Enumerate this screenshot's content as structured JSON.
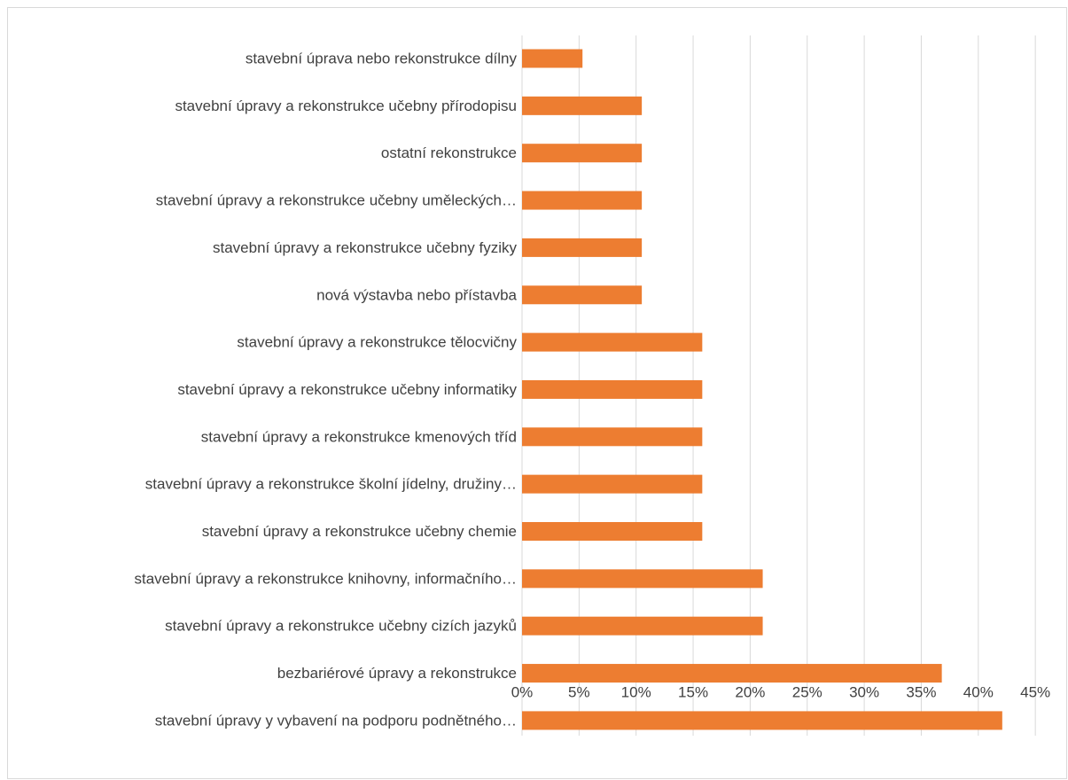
{
  "chart_data": {
    "type": "bar",
    "orientation": "horizontal",
    "title": "",
    "xlabel": "",
    "ylabel": "",
    "xlim": [
      0,
      45
    ],
    "x_ticks": [
      "0%",
      "5%",
      "10%",
      "15%",
      "20%",
      "25%",
      "30%",
      "35%",
      "40%",
      "45%"
    ],
    "grid": true,
    "bar_color": "#ED7D31",
    "categories": [
      "stavební úprava nebo rekonstrukce dílny",
      "stavební úpravy a rekonstrukce učebny přírodopisu",
      "ostatní rekonstrukce",
      "stavební úpravy a rekonstrukce učebny uměleckých…",
      "stavební úpravy a rekonstrukce učebny fyziky",
      "nová výstavba nebo přístavba",
      "stavební úpravy a rekonstrukce tělocvičny",
      "stavební úpravy a rekonstrukce učebny informatiky",
      "stavební úpravy a rekonstrukce kmenových tříd",
      "stavební úpravy a rekonstrukce školní jídelny, družiny…",
      "stavební úpravy a rekonstrukce učebny chemie",
      "stavební úpravy a rekonstrukce knihovny, informačního…",
      "stavební úpravy a rekonstrukce učebny cizích jazyků",
      "bezbariérové úpravy a rekonstrukce",
      "stavební úpravy y vybavení na podporu podnětného…"
    ],
    "values": [
      5.3,
      10.5,
      10.5,
      10.5,
      10.5,
      10.5,
      15.8,
      15.8,
      15.8,
      15.8,
      15.8,
      21.1,
      21.1,
      36.8,
      42.1
    ]
  }
}
